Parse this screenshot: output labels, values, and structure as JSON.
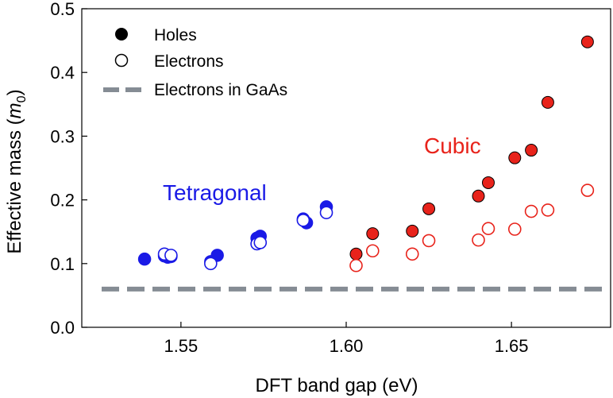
{
  "chart_data": {
    "type": "scatter",
    "title": "",
    "xlabel": "DFT band gap (eV)",
    "ylabel_main": "Effective mass (",
    "ylabel_var": "m",
    "ylabel_sub": "0",
    "ylabel_close": ")",
    "xlim": [
      1.52,
      1.68
    ],
    "ylim": [
      0.0,
      0.5
    ],
    "xticks": [
      1.55,
      1.6,
      1.65
    ],
    "xtick_labels": [
      "1.55",
      "1.60",
      "1.65"
    ],
    "yticks": [
      0.0,
      0.1,
      0.2,
      0.3,
      0.4,
      0.5
    ],
    "ytick_labels": [
      "0.0",
      "0.1",
      "0.2",
      "0.3",
      "0.4",
      "0.5"
    ],
    "grid": false,
    "legend": {
      "placement": "top-left",
      "entries": [
        {
          "label": "Holes",
          "marker": "filled-circle"
        },
        {
          "label": "Electrons",
          "marker": "open-circle"
        },
        {
          "label": "Electrons in GaAs",
          "marker": "dashed-line"
        }
      ]
    },
    "annotations": [
      {
        "text": "Tetragonal",
        "color": "#1a1ae6"
      },
      {
        "text": "Cubic",
        "color": "#e8231b"
      }
    ],
    "reference_line": {
      "name": "Electrons in GaAs",
      "y": 0.06,
      "color": "#858c94"
    },
    "series": [
      {
        "name": "Tetragonal holes",
        "phase": "Tetragonal",
        "carrier": "Holes",
        "color": "#1a1ae6",
        "filled": true,
        "points": [
          [
            1.539,
            0.107
          ],
          [
            1.545,
            0.112
          ],
          [
            1.546,
            0.11
          ],
          [
            1.547,
            0.111
          ],
          [
            1.559,
            0.103
          ],
          [
            1.561,
            0.113
          ],
          [
            1.573,
            0.14
          ],
          [
            1.574,
            0.143
          ],
          [
            1.587,
            0.17
          ],
          [
            1.588,
            0.164
          ],
          [
            1.594,
            0.189
          ]
        ]
      },
      {
        "name": "Tetragonal electrons",
        "phase": "Tetragonal",
        "carrier": "Electrons",
        "color": "#1a1ae6",
        "filled": false,
        "points": [
          [
            1.545,
            0.115
          ],
          [
            1.547,
            0.113
          ],
          [
            1.559,
            0.1
          ],
          [
            1.573,
            0.131
          ],
          [
            1.574,
            0.133
          ],
          [
            1.587,
            0.168
          ],
          [
            1.594,
            0.18
          ]
        ]
      },
      {
        "name": "Cubic holes",
        "phase": "Cubic",
        "carrier": "Holes",
        "color": "#e8231b",
        "filled": true,
        "points": [
          [
            1.603,
            0.115
          ],
          [
            1.608,
            0.147
          ],
          [
            1.62,
            0.151
          ],
          [
            1.625,
            0.186
          ],
          [
            1.64,
            0.206
          ],
          [
            1.643,
            0.227
          ],
          [
            1.651,
            0.266
          ],
          [
            1.656,
            0.278
          ],
          [
            1.661,
            0.353
          ],
          [
            1.673,
            0.448
          ]
        ]
      },
      {
        "name": "Cubic electrons",
        "phase": "Cubic",
        "carrier": "Electrons",
        "color": "#e8231b",
        "filled": false,
        "points": [
          [
            1.603,
            0.097
          ],
          [
            1.608,
            0.12
          ],
          [
            1.62,
            0.115
          ],
          [
            1.625,
            0.136
          ],
          [
            1.64,
            0.137
          ],
          [
            1.643,
            0.155
          ],
          [
            1.651,
            0.154
          ],
          [
            1.656,
            0.182
          ],
          [
            1.661,
            0.184
          ],
          [
            1.673,
            0.215
          ]
        ]
      }
    ]
  }
}
